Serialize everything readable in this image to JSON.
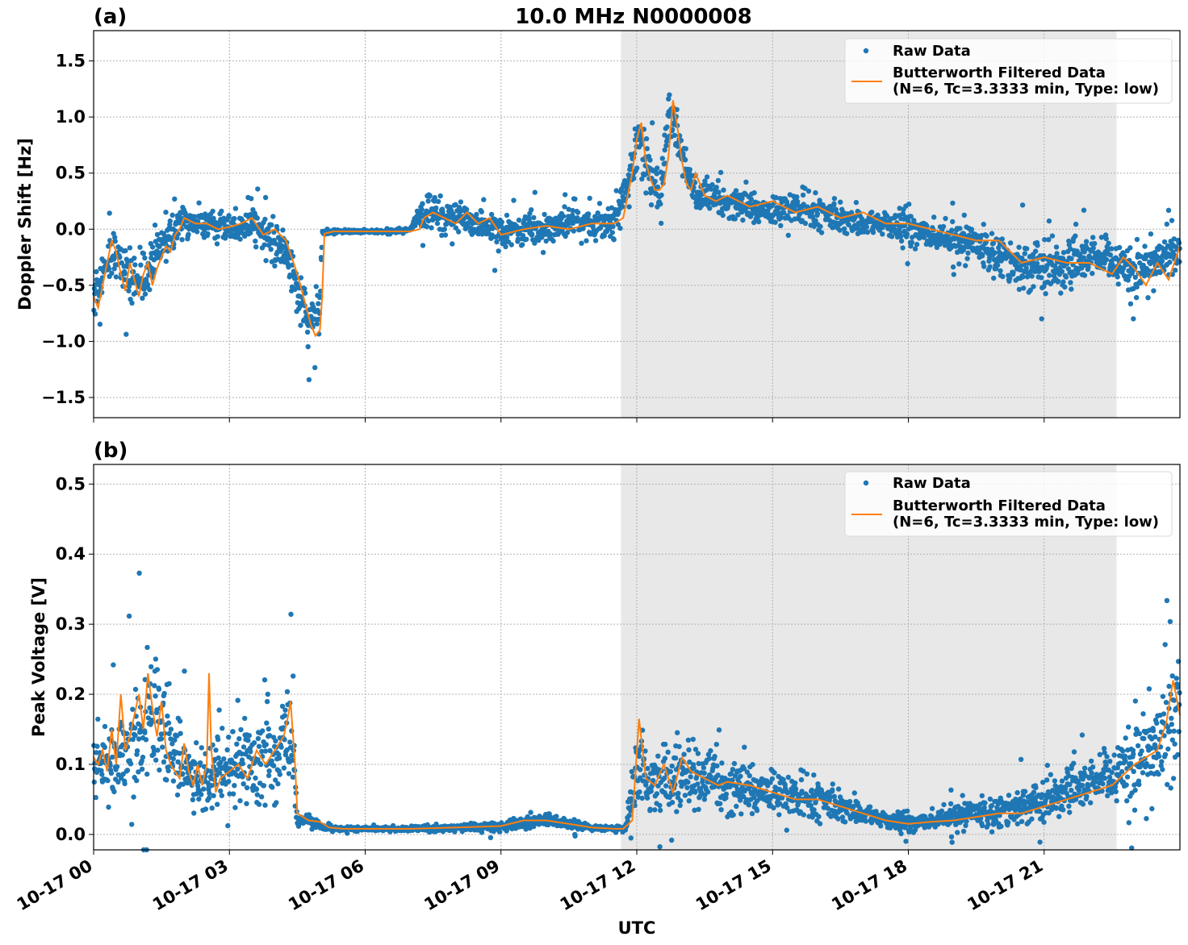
{
  "figure": {
    "title": "10.0 MHz N0000008",
    "xlabel": "UTC",
    "x_tick_labels": [
      "10-17 00",
      "10-17 03",
      "10-17 06",
      "10-17 09",
      "10-17 12",
      "10-17 15",
      "10-17 18",
      "10-17 21"
    ],
    "shaded_interval_hours": [
      11.65,
      22.6
    ],
    "colors": {
      "raw": "#1f77b4",
      "filtered": "#ff7f0e",
      "shade": "#e8e8e8",
      "grid": "#b0b0b0"
    }
  },
  "chart_data": [
    {
      "type": "scatter",
      "panel_label": "(a)",
      "title": "10.0 MHz N0000008",
      "xlabel": "UTC",
      "ylabel": "Doppler Shift [Hz]",
      "x_unit": "hours since 10-17 00 UTC",
      "xlim": [
        0,
        24
      ],
      "ylim": [
        -1.68,
        1.77
      ],
      "y_ticks": [
        -1.5,
        -1.0,
        -0.5,
        0.0,
        0.5,
        1.0,
        1.5
      ],
      "y_tick_labels": [
        "−1.5",
        "−1.0",
        "−0.5",
        "0.0",
        "0.5",
        "1.0",
        "1.5"
      ],
      "grid": true,
      "legend": {
        "placement": "top-right",
        "raw_label": "Raw Data",
        "filtered_label_line1": "Butterworth Filtered Data",
        "filtered_label_line2": "(N=6, Tc=3.3333 min, Type: low)"
      },
      "series": [
        {
          "name": "Raw Data",
          "kind": "scatter",
          "x": [
            0,
            0.25,
            0.5,
            0.75,
            1.0,
            1.25,
            1.5,
            1.75,
            2.0,
            2.25,
            2.5,
            2.75,
            3.0,
            3.25,
            3.5,
            3.75,
            4.0,
            4.25,
            4.5,
            4.75,
            5.0,
            5.05,
            5.25,
            5.5,
            6.0,
            6.5,
            7.0,
            7.25,
            7.5,
            7.75,
            8.0,
            8.5,
            9.0,
            9.5,
            10.0,
            10.5,
            11.0,
            11.5,
            11.75,
            12.0,
            12.25,
            12.5,
            12.75,
            13.0,
            13.25,
            13.5,
            14.0,
            14.5,
            15.0,
            15.5,
            16.0,
            16.5,
            17.0,
            17.5,
            18.0,
            18.5,
            19.0,
            19.5,
            20.0,
            20.5,
            21.0,
            21.5,
            22.0,
            22.5,
            23.0,
            23.5,
            24.0
          ],
          "center": [
            -0.6,
            -0.3,
            -0.2,
            -0.4,
            -0.5,
            -0.35,
            -0.15,
            0.0,
            0.08,
            0.05,
            0.05,
            0.05,
            0.0,
            0.0,
            0.08,
            -0.05,
            -0.1,
            -0.2,
            -0.55,
            -0.85,
            -0.7,
            -0.03,
            -0.02,
            -0.02,
            -0.02,
            -0.02,
            -0.01,
            0.15,
            0.15,
            0.1,
            0.1,
            0.05,
            -0.05,
            0.0,
            0.02,
            0.05,
            0.05,
            0.08,
            0.3,
            0.85,
            0.55,
            0.3,
            1.05,
            0.7,
            0.35,
            0.25,
            0.25,
            0.2,
            0.15,
            0.2,
            0.15,
            0.1,
            0.05,
            0.05,
            0.0,
            -0.05,
            -0.1,
            -0.15,
            -0.2,
            -0.35,
            -0.3,
            -0.35,
            -0.25,
            -0.3,
            -0.4,
            -0.3,
            -0.15
          ],
          "spread": [
            0.28,
            0.25,
            0.22,
            0.25,
            0.2,
            0.22,
            0.2,
            0.15,
            0.15,
            0.13,
            0.12,
            0.12,
            0.12,
            0.12,
            0.15,
            0.15,
            0.2,
            0.2,
            0.25,
            0.3,
            0.28,
            0.02,
            0.015,
            0.015,
            0.015,
            0.015,
            0.02,
            0.2,
            0.2,
            0.18,
            0.15,
            0.15,
            0.15,
            0.15,
            0.15,
            0.15,
            0.15,
            0.15,
            0.2,
            0.3,
            0.25,
            0.25,
            0.3,
            0.25,
            0.2,
            0.18,
            0.15,
            0.15,
            0.15,
            0.15,
            0.15,
            0.15,
            0.15,
            0.15,
            0.15,
            0.15,
            0.15,
            0.18,
            0.2,
            0.25,
            0.25,
            0.25,
            0.22,
            0.22,
            0.2,
            0.2,
            0.2
          ]
        },
        {
          "name": "Butterworth Filtered Data (N=6, Tc=3.3333 min, Type: low)",
          "kind": "line",
          "x": [
            0,
            0.1,
            0.2,
            0.3,
            0.4,
            0.5,
            0.6,
            0.7,
            0.8,
            0.9,
            1.0,
            1.1,
            1.2,
            1.3,
            1.4,
            1.5,
            1.6,
            1.7,
            1.8,
            1.9,
            2.0,
            2.25,
            2.5,
            2.75,
            3.0,
            3.25,
            3.5,
            3.75,
            4.0,
            4.25,
            4.5,
            4.6,
            4.7,
            4.8,
            4.9,
            5.0,
            5.05,
            5.1,
            5.3,
            6.0,
            6.5,
            7.0,
            7.2,
            7.3,
            7.5,
            7.75,
            8.0,
            8.25,
            8.5,
            8.75,
            9.0,
            9.5,
            10.0,
            10.5,
            11.0,
            11.5,
            11.7,
            11.8,
            11.9,
            12.0,
            12.1,
            12.2,
            12.3,
            12.4,
            12.5,
            12.6,
            12.7,
            12.8,
            12.9,
            13.0,
            13.1,
            13.2,
            13.3,
            13.5,
            13.75,
            14.0,
            14.5,
            15.0,
            15.5,
            16.0,
            16.5,
            17.0,
            17.5,
            18.0,
            18.5,
            19.0,
            19.5,
            20.0,
            20.25,
            20.5,
            21.0,
            21.5,
            22.0,
            22.5,
            22.75,
            23.0,
            23.25,
            23.5,
            23.75,
            24.0
          ],
          "y": [
            -0.6,
            -0.7,
            -0.5,
            -0.3,
            -0.1,
            -0.2,
            -0.4,
            -0.55,
            -0.3,
            -0.45,
            -0.6,
            -0.4,
            -0.3,
            -0.5,
            -0.35,
            -0.25,
            -0.15,
            -0.2,
            -0.05,
            0.0,
            0.1,
            0.05,
            0.05,
            0.0,
            0.02,
            0.05,
            0.1,
            -0.05,
            0.0,
            -0.1,
            -0.4,
            -0.55,
            -0.7,
            -0.85,
            -0.95,
            -0.9,
            -0.6,
            -0.04,
            -0.02,
            -0.02,
            -0.02,
            -0.02,
            0.0,
            0.1,
            0.15,
            0.1,
            0.05,
            0.15,
            0.05,
            0.1,
            -0.05,
            0.0,
            0.03,
            0.0,
            0.05,
            0.05,
            0.1,
            0.3,
            0.5,
            0.8,
            0.95,
            0.6,
            0.45,
            0.35,
            0.35,
            0.4,
            0.65,
            1.15,
            0.9,
            0.6,
            0.4,
            0.35,
            0.5,
            0.3,
            0.25,
            0.3,
            0.2,
            0.25,
            0.15,
            0.2,
            0.1,
            0.15,
            0.05,
            0.05,
            0.0,
            -0.05,
            -0.1,
            -0.1,
            -0.2,
            -0.3,
            -0.25,
            -0.3,
            -0.3,
            -0.4,
            -0.25,
            -0.35,
            -0.5,
            -0.3,
            -0.45,
            -0.15
          ]
        }
      ]
    },
    {
      "type": "scatter",
      "panel_label": "(b)",
      "xlabel": "UTC",
      "ylabel": "Peak Voltage [V]",
      "x_unit": "hours since 10-17 00 UTC",
      "xlim": [
        0,
        24
      ],
      "ylim": [
        -0.022,
        0.528
      ],
      "y_ticks": [
        0.0,
        0.1,
        0.2,
        0.3,
        0.4,
        0.5
      ],
      "y_tick_labels": [
        "0.0",
        "0.1",
        "0.2",
        "0.3",
        "0.4",
        "0.5"
      ],
      "grid": true,
      "legend": {
        "placement": "top-right",
        "raw_label": "Raw Data",
        "filtered_label_line1": "Butterworth Filtered Data",
        "filtered_label_line2": "(N=6, Tc=3.3333 min, Type: low)"
      },
      "series": [
        {
          "name": "Raw Data",
          "kind": "scatter",
          "x": [
            0,
            0.25,
            0.5,
            0.75,
            1.0,
            1.25,
            1.5,
            1.75,
            2.0,
            2.25,
            2.5,
            2.75,
            3.0,
            3.25,
            3.5,
            3.75,
            4.0,
            4.25,
            4.4,
            4.5,
            4.75,
            5.0,
            5.25,
            5.5,
            6.0,
            7.0,
            8.0,
            9.0,
            9.5,
            10.0,
            10.5,
            11.0,
            11.5,
            11.75,
            12.0,
            12.25,
            12.5,
            13.0,
            13.5,
            14.0,
            14.5,
            15.0,
            15.5,
            16.0,
            16.5,
            17.0,
            17.5,
            18.0,
            18.5,
            19.0,
            19.5,
            20.0,
            20.5,
            21.0,
            21.5,
            22.0,
            22.5,
            23.0,
            23.5,
            24.0
          ],
          "center": [
            0.1,
            0.1,
            0.11,
            0.13,
            0.16,
            0.17,
            0.15,
            0.12,
            0.1,
            0.08,
            0.08,
            0.1,
            0.1,
            0.1,
            0.1,
            0.1,
            0.11,
            0.13,
            0.15,
            0.02,
            0.018,
            0.012,
            0.008,
            0.008,
            0.008,
            0.008,
            0.01,
            0.012,
            0.018,
            0.02,
            0.015,
            0.01,
            0.008,
            0.008,
            0.1,
            0.08,
            0.08,
            0.09,
            0.08,
            0.07,
            0.065,
            0.06,
            0.055,
            0.05,
            0.04,
            0.03,
            0.02,
            0.015,
            0.02,
            0.025,
            0.03,
            0.035,
            0.04,
            0.05,
            0.06,
            0.07,
            0.08,
            0.1,
            0.12,
            0.2
          ],
          "spread": [
            0.06,
            0.06,
            0.06,
            0.08,
            0.1,
            0.1,
            0.09,
            0.08,
            0.06,
            0.05,
            0.05,
            0.06,
            0.06,
            0.06,
            0.06,
            0.06,
            0.07,
            0.08,
            0.09,
            0.01,
            0.01,
            0.004,
            0.003,
            0.003,
            0.003,
            0.004,
            0.006,
            0.008,
            0.01,
            0.012,
            0.008,
            0.005,
            0.003,
            0.004,
            0.06,
            0.05,
            0.05,
            0.06,
            0.05,
            0.045,
            0.04,
            0.035,
            0.03,
            0.03,
            0.025,
            0.02,
            0.015,
            0.012,
            0.015,
            0.018,
            0.02,
            0.025,
            0.03,
            0.03,
            0.035,
            0.04,
            0.045,
            0.06,
            0.07,
            0.12
          ]
        },
        {
          "name": "Butterworth Filtered Data (N=6, Tc=3.3333 min, Type: low)",
          "kind": "line",
          "x": [
            0,
            0.1,
            0.2,
            0.3,
            0.4,
            0.5,
            0.6,
            0.7,
            0.8,
            0.9,
            1.0,
            1.1,
            1.2,
            1.3,
            1.4,
            1.5,
            1.6,
            1.7,
            1.8,
            1.9,
            2.0,
            2.1,
            2.2,
            2.3,
            2.4,
            2.5,
            2.55,
            2.6,
            2.7,
            2.8,
            3.0,
            3.2,
            3.4,
            3.6,
            3.8,
            4.0,
            4.2,
            4.3,
            4.35,
            4.45,
            4.5,
            4.75,
            5.0,
            5.2,
            5.5,
            6.0,
            7.0,
            8.0,
            9.0,
            9.5,
            10.0,
            10.5,
            11.0,
            11.5,
            11.7,
            11.9,
            12.05,
            12.2,
            12.4,
            12.6,
            12.8,
            13.0,
            13.2,
            13.5,
            13.8,
            14.0,
            14.5,
            15.0,
            15.5,
            16.0,
            16.5,
            17.0,
            17.5,
            18.0,
            18.5,
            19.0,
            19.5,
            20.0,
            20.5,
            21.0,
            21.5,
            22.0,
            22.5,
            23.0,
            23.5,
            23.7,
            23.85,
            24.0
          ],
          "y": [
            0.11,
            0.1,
            0.12,
            0.09,
            0.15,
            0.1,
            0.2,
            0.12,
            0.14,
            0.17,
            0.2,
            0.15,
            0.23,
            0.18,
            0.14,
            0.19,
            0.12,
            0.1,
            0.09,
            0.08,
            0.13,
            0.09,
            0.07,
            0.1,
            0.07,
            0.1,
            0.23,
            0.12,
            0.06,
            0.08,
            0.09,
            0.1,
            0.08,
            0.12,
            0.1,
            0.12,
            0.14,
            0.17,
            0.19,
            0.1,
            0.03,
            0.02,
            0.018,
            0.01,
            0.008,
            0.008,
            0.008,
            0.01,
            0.012,
            0.02,
            0.02,
            0.015,
            0.01,
            0.008,
            0.008,
            0.02,
            0.165,
            0.08,
            0.07,
            0.1,
            0.06,
            0.11,
            0.09,
            0.08,
            0.07,
            0.075,
            0.07,
            0.06,
            0.05,
            0.05,
            0.04,
            0.03,
            0.02,
            0.015,
            0.018,
            0.02,
            0.025,
            0.03,
            0.03,
            0.04,
            0.05,
            0.06,
            0.07,
            0.1,
            0.12,
            0.16,
            0.22,
            0.17
          ]
        }
      ]
    }
  ]
}
